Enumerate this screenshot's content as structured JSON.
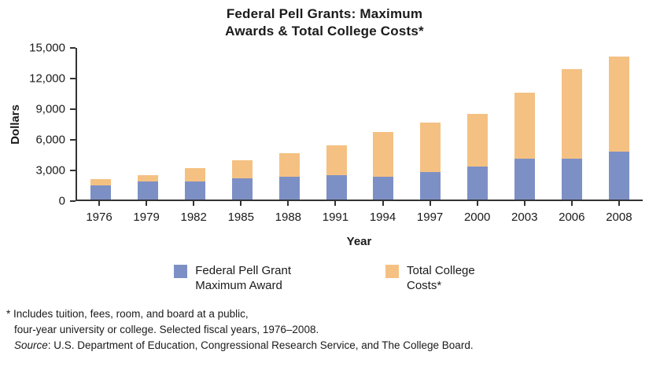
{
  "title_lines": "Federal Pell Grants: Maximum\nAwards & Total College Costs*",
  "chart_data": {
    "type": "bar",
    "stacked": true,
    "title": "Federal Pell Grants: Maximum Awards & Total College Costs*",
    "xlabel": "Year",
    "ylabel": "Dollars",
    "ylim": [
      0,
      15000
    ],
    "ytick_labels_top_to_bottom": [
      "15,000",
      "12,000",
      "9,000",
      "6,000",
      "3,000",
      "0"
    ],
    "grid": false,
    "legend_position": "bottom",
    "categories": [
      "1976",
      "1979",
      "1982",
      "1985",
      "1988",
      "1991",
      "1994",
      "1997",
      "2000",
      "2003",
      "2006",
      "2008"
    ],
    "series": [
      {
        "name": "Federal Pell Grant Maximum Award",
        "color": "#7d90c5",
        "values": [
          1400,
          1800,
          1800,
          2100,
          2300,
          2400,
          2300,
          2700,
          3300,
          4050,
          4050,
          4750
        ]
      },
      {
        "name": "Total College Costs*",
        "color": "#f4c183",
        "values": [
          2000,
          2450,
          3100,
          3900,
          4600,
          5400,
          6700,
          7600,
          8450,
          10600,
          12900,
          14200
        ],
        "note": "values are bar-top totals; orange segment spans from Pell maximum to total college cost"
      }
    ]
  },
  "legend": {
    "items": [
      {
        "line1": "Federal Pell Grant",
        "line2": "Maximum Award",
        "color": "#7d90c5"
      },
      {
        "line1": "Total College",
        "line2": "Costs*",
        "color": "#f4c183"
      }
    ]
  },
  "footnote": {
    "line1": "* Includes tuition, fees, room, and board at a public,",
    "line2": "four-year university or college. Selected fiscal years, 1976–2008.",
    "source_label": "Source",
    "source_rest": ": U.S. Department of Education, Congressional Research Service, and The College Board."
  }
}
